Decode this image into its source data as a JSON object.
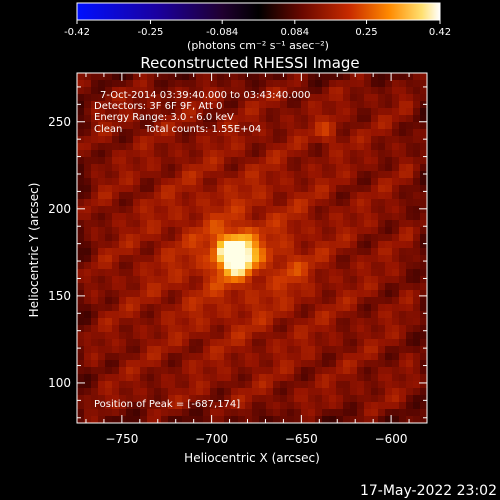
{
  "chart_data": {
    "type": "heatmap",
    "title": "Reconstructed RHESSI Image",
    "xlabel": "Heliocentric X (arcsec)",
    "ylabel": "Heliocentric Y (arcsec)",
    "xlim": [
      -775,
      -580
    ],
    "ylim": [
      77,
      278
    ],
    "xticks": [
      -750,
      -700,
      -650,
      -600
    ],
    "yticks": [
      100,
      150,
      200,
      250
    ],
    "colorbar": {
      "min": -0.42,
      "max": 0.42,
      "ticks": [
        "-0.42",
        "-0.25",
        "-0.084",
        "0.084",
        "0.25",
        "0.42"
      ],
      "unit_label": "(photons cm⁻² s⁻¹ asec⁻²)"
    },
    "annotations": {
      "time_range": "7-Oct-2014 03:39:40.000 to 03:43:40.000",
      "detectors": "Detectors: 3F 6F 9F, Att 0",
      "energy": "Energy Range: 3.0 - 6.0 keV",
      "clean": "Clean",
      "counts": "Total counts: 1.55E+04",
      "peak": "Position of Peak = [-687,174]"
    },
    "sources": [
      {
        "x": -687,
        "y": 174,
        "rel": 1.0
      },
      {
        "x": -635,
        "y": 244,
        "rel": 0.55
      }
    ],
    "grid": false
  },
  "footer": {
    "timestamp": "17-May-2022 23:02"
  },
  "colors": {
    "background": "#000000",
    "axis": "#ffffff",
    "colormap": [
      "#0000ff",
      "#000000",
      "#a01a00",
      "#ff7a00",
      "#ffff90",
      "#ffffff"
    ]
  }
}
